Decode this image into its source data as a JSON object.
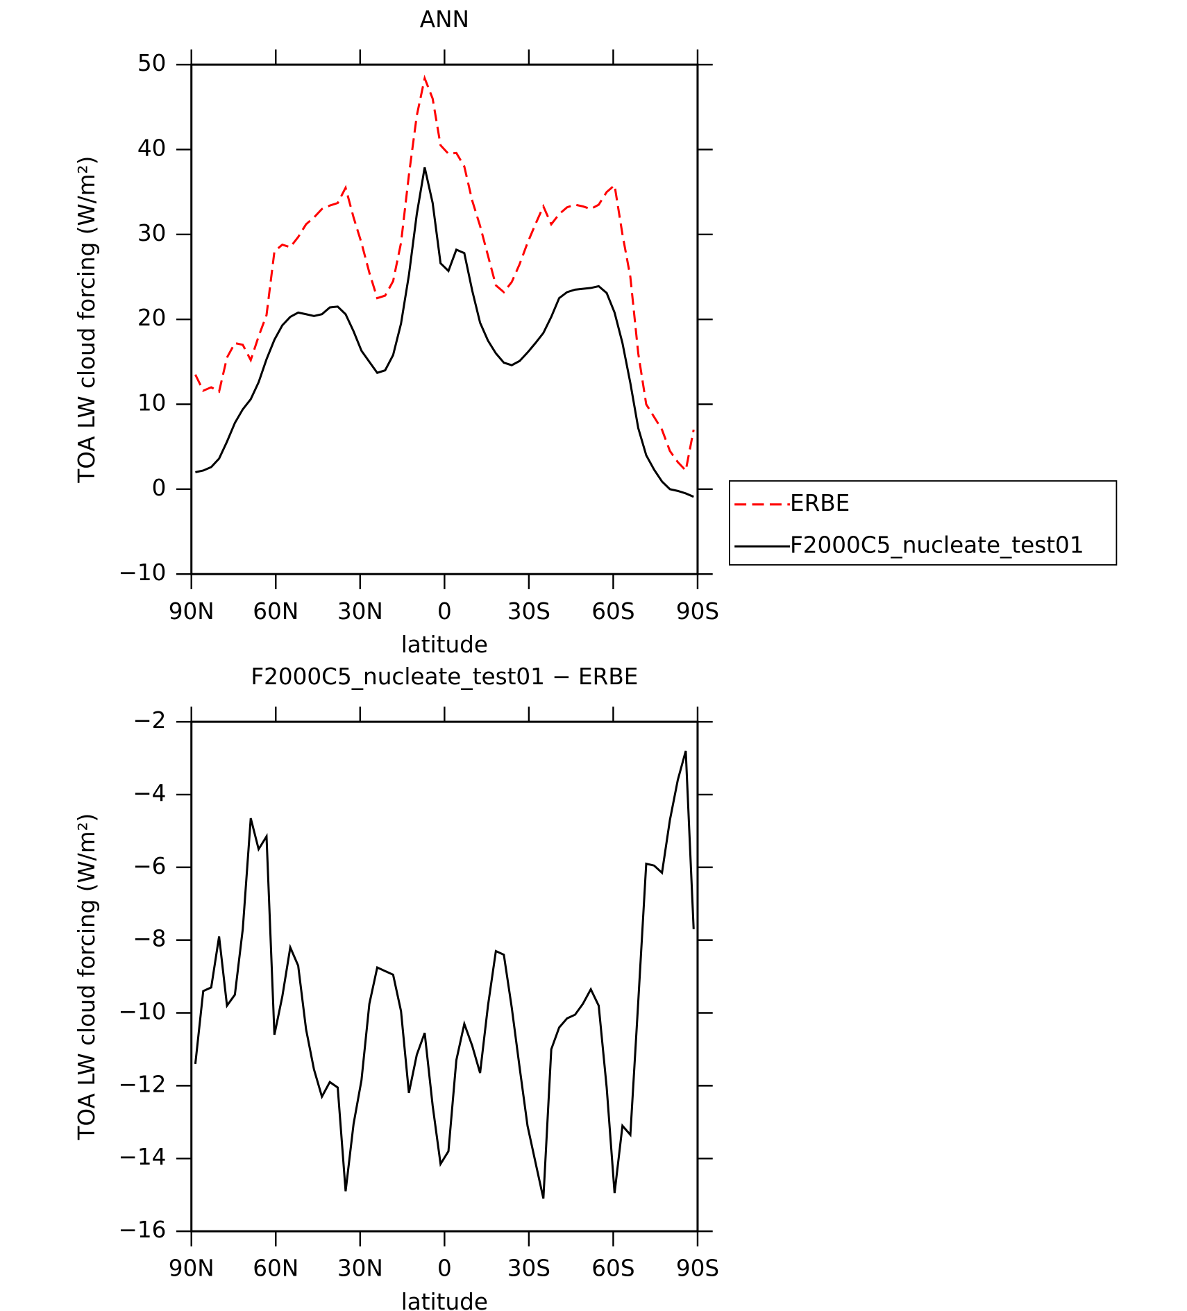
{
  "chart_data": [
    {
      "type": "line",
      "title": "ANN",
      "xlabel": "latitude",
      "ylabel": "TOA LW cloud forcing (W/m²)",
      "x": [
        88.59,
        85.78,
        82.97,
        80.16,
        77.34,
        74.53,
        71.72,
        68.91,
        66.09,
        63.28,
        60.47,
        57.66,
        54.84,
        52.03,
        49.22,
        46.41,
        43.59,
        40.78,
        37.97,
        35.16,
        32.34,
        29.53,
        26.72,
        23.91,
        21.09,
        18.28,
        15.47,
        12.66,
        9.84,
        7.03,
        4.22,
        1.41,
        -1.41,
        -4.22,
        -7.03,
        -9.84,
        -12.66,
        -15.47,
        -18.28,
        -21.09,
        -23.91,
        -26.72,
        -29.53,
        -32.34,
        -35.16,
        -37.97,
        -40.78,
        -43.59,
        -46.41,
        -49.22,
        -52.03,
        -54.84,
        -57.66,
        -60.47,
        -63.28,
        -66.09,
        -68.91,
        -71.72,
        -74.53,
        -77.34,
        -80.16,
        -82.97,
        -85.78,
        -88.59
      ],
      "series": [
        {
          "name": "ERBE",
          "color": "#ff0000",
          "linestyle": "dashed",
          "values": [
            13.5,
            11.6,
            12,
            11.5,
            15.5,
            17.2,
            17,
            15.2,
            18,
            20.5,
            28,
            28.8,
            28.5,
            29.7,
            31.2,
            32,
            33,
            33.4,
            33.7,
            35.5,
            32,
            29,
            25.5,
            22.5,
            22.8,
            24.5,
            29,
            37,
            44,
            48.4,
            46,
            40.5,
            39.5,
            39.6,
            38,
            34,
            31,
            27.5,
            24,
            23.2,
            24.4,
            26.5,
            29,
            31.2,
            33.3,
            31.2,
            32.4,
            33.2,
            33.5,
            33.3,
            33,
            33.5,
            35,
            35.8,
            30,
            25,
            16,
            10,
            8.5,
            7,
            4.5,
            3.2,
            2.2,
            7
          ]
        },
        {
          "name": "F2000C5_nucleate_test01",
          "color": "#000000",
          "linestyle": "solid",
          "values": [
            2,
            2.2,
            2.6,
            3.6,
            5.6,
            7.8,
            9.4,
            10.6,
            12.6,
            15.3,
            17.6,
            19.3,
            20.3,
            20.8,
            20.6,
            20.4,
            20.6,
            21.4,
            21.5,
            20.6,
            18.6,
            16.3,
            15,
            13.7,
            14,
            15.8,
            19.5,
            25.2,
            32.4,
            37.9,
            33.7,
            26.6,
            25.7,
            28.2,
            27.8,
            23.4,
            19.6,
            17.5,
            16,
            14.9,
            14.6,
            15.1,
            16.1,
            17.2,
            18.4,
            20.3,
            22.5,
            23.2,
            23.5,
            23.6,
            23.7,
            23.9,
            23.1,
            20.8,
            17.2,
            12.5,
            7.2,
            4,
            2.3,
            0.9,
            0,
            -0.2,
            -0.5,
            -0.9
          ]
        }
      ],
      "xlim": [
        90,
        -90
      ],
      "xticks": [
        {
          "value": 90,
          "label": "90N"
        },
        {
          "value": 60,
          "label": "60N"
        },
        {
          "value": 30,
          "label": "30N"
        },
        0,
        {
          "value": -30,
          "label": "30S"
        },
        {
          "value": -60,
          "label": "60S"
        },
        {
          "value": -90,
          "label": "90S"
        }
      ],
      "ylim": [
        -10,
        50
      ],
      "yticks": [
        {
          "value": -10,
          "label": "−10"
        },
        0,
        10,
        20,
        30,
        40,
        50
      ],
      "legend": "right"
    },
    {
      "type": "line",
      "title": "F2000C5_nucleate_test01 − ERBE",
      "xlabel": "latitude",
      "ylabel": "TOA LW cloud forcing (W/m²)",
      "x": [
        88.59,
        85.78,
        82.97,
        80.16,
        77.34,
        74.53,
        71.72,
        68.91,
        66.09,
        63.28,
        60.47,
        57.66,
        54.84,
        52.03,
        49.22,
        46.41,
        43.59,
        40.78,
        37.97,
        35.16,
        32.34,
        29.53,
        26.72,
        23.91,
        21.09,
        18.28,
        15.47,
        12.66,
        9.84,
        7.03,
        4.22,
        1.41,
        -1.41,
        -4.22,
        -7.03,
        -9.84,
        -12.66,
        -15.47,
        -18.28,
        -21.09,
        -23.91,
        -26.72,
        -29.53,
        -32.34,
        -35.16,
        -37.97,
        -40.78,
        -43.59,
        -46.41,
        -49.22,
        -52.03,
        -54.84,
        -57.66,
        -60.47,
        -63.28,
        -66.09,
        -68.91,
        -71.72,
        -74.53,
        -77.34,
        -80.16,
        -82.97,
        -85.78,
        -88.59
      ],
      "color": "#000000",
      "values": [
        -11.4,
        -9.4,
        -9.3,
        -7.9,
        -9.8,
        -9.5,
        -7.7,
        -4.65,
        -5.5,
        -5.15,
        -10.6,
        -9.55,
        -8.2,
        -8.7,
        -10.45,
        -11.55,
        -12.3,
        -11.9,
        -12.05,
        -14.9,
        -13.05,
        -11.85,
        -9.75,
        -8.75,
        -8.85,
        -8.95,
        -9.95,
        -12.2,
        -11.15,
        -10.55,
        -12.55,
        -14.15,
        -13.8,
        -11.3,
        -10.3,
        -10.9,
        -11.65,
        -9.8,
        -8.3,
        -8.4,
        -9.85,
        -11.5,
        -13.1,
        -14.1,
        -15.1,
        -11,
        -10.4,
        -10.15,
        -10.05,
        -9.75,
        -9.35,
        -9.8,
        -12.05,
        -14.95,
        -13.1,
        -13.35,
        -9.7,
        -5.9,
        -5.95,
        -6.15,
        -4.7,
        -3.6,
        -2.8,
        -7.7
      ],
      "xlim": [
        90,
        -90
      ],
      "xticks": [
        {
          "value": 90,
          "label": "90N"
        },
        {
          "value": 60,
          "label": "60N"
        },
        {
          "value": 30,
          "label": "30N"
        },
        0,
        {
          "value": -30,
          "label": "30S"
        },
        {
          "value": -60,
          "label": "60S"
        },
        {
          "value": -90,
          "label": "90S"
        }
      ],
      "ylim": [
        -16,
        -2
      ],
      "yticks": [
        {
          "value": -16,
          "label": "−16"
        },
        {
          "value": -14,
          "label": "−14"
        },
        {
          "value": -12,
          "label": "−12"
        },
        {
          "value": -10,
          "label": "−10"
        },
        {
          "value": -8,
          "label": "−8"
        },
        {
          "value": -6,
          "label": "−6"
        },
        {
          "value": -4,
          "label": "−4"
        },
        {
          "value": -2,
          "label": "−2"
        }
      ]
    }
  ]
}
